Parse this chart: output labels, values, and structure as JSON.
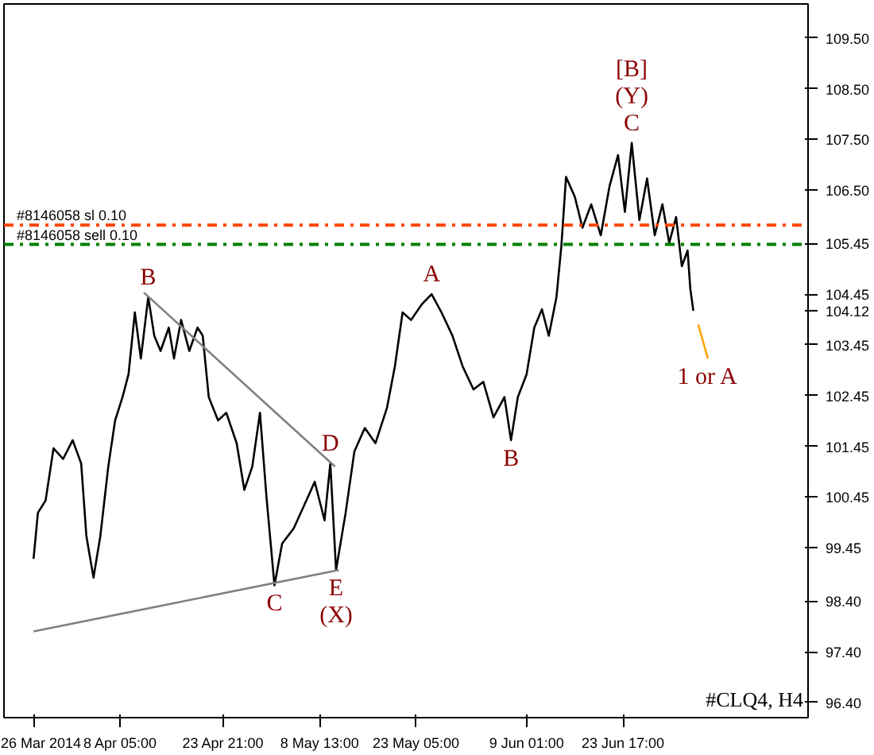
{
  "chart_data": {
    "type": "line",
    "xlim": [
      "2014-03-21T12:00",
      "2014-07-21T21:00"
    ],
    "ylim": [
      96.1,
      110.17
    ],
    "xticks": [
      {
        "value": "2014-03-26",
        "label": "26 Mar 2014"
      },
      {
        "value": "2014-04-08T05:00",
        "label": "8 Apr 05:00"
      },
      {
        "value": "2014-04-23T21:00",
        "label": "23 Apr 21:00"
      },
      {
        "value": "2014-05-08T13:00",
        "label": "8 May 13:00"
      },
      {
        "value": "2014-05-23T05:00",
        "label": "23 May 05:00"
      },
      {
        "value": "2014-06-09T01:00",
        "label": "9 Jun 01:00"
      },
      {
        "value": "2014-06-23T17:00",
        "label": "23 Jun 17:00"
      }
    ],
    "yticks": [
      {
        "value": 96.4,
        "label": "96.40"
      },
      {
        "value": 97.4,
        "label": "97.40"
      },
      {
        "value": 98.4,
        "label": "98.40"
      },
      99.45,
      100.45,
      101.45,
      102.45,
      103.45,
      104.12,
      104.45,
      105.45,
      {
        "value": 106.5,
        "label": "106.50"
      },
      {
        "value": 107.5,
        "label": "107.50"
      },
      {
        "value": 108.5,
        "label": "108.50"
      },
      {
        "value": 109.5,
        "label": "109.50"
      }
    ],
    "grid": false,
    "marker": "none",
    "line_style": "solid",
    "series": [
      {
        "color": "#000000",
        "x": [
          "2014-03-26T00:00",
          "2014-03-26T16:00",
          "2014-03-27T20:00",
          "2014-03-29T01:00",
          "2014-03-30T12:00",
          "2014-03-31T23:00",
          "2014-04-02T06:00",
          "2014-04-03T01:00",
          "2014-04-04T03:00",
          "2014-04-05T04:00",
          "2014-04-06T09:00",
          "2014-04-07T10:00",
          "2014-04-08T13:00",
          "2014-04-09T11:00",
          "2014-04-10T10:00",
          "2014-04-11T08:00",
          "2014-04-12T11:00",
          "2014-04-13T09:00",
          "2014-04-14T08:00",
          "2014-04-15T14:00",
          "2014-04-16T09:00",
          "2014-04-17T11:00",
          "2014-04-18T17:00",
          "2014-04-19T23:00",
          "2014-04-20T18:00",
          "2014-04-21T16:00",
          "2014-04-23T02:00",
          "2014-04-24T08:00",
          "2014-04-25T22:00",
          "2014-04-27T02:00",
          "2014-04-28T07:00",
          "2014-04-29T11:00",
          "2014-04-30T11:00",
          "2014-05-01T16:00",
          "2014-05-02T20:00",
          "2014-05-04T14:00",
          "2014-05-06T05:00",
          "2014-05-07T19:00",
          "2014-05-09T07:00",
          "2014-05-10T04:00",
          "2014-05-11T01:00",
          "2014-05-12T12:00",
          "2014-05-13T20:00",
          "2014-05-15T10:00",
          "2014-05-17T01:00",
          "2014-05-18T19:00",
          "2014-05-20T00:00",
          "2014-05-21T04:00",
          "2014-05-22T11:00",
          "2014-05-24T01:00",
          "2014-05-25T14:00",
          "2014-05-27T02:00",
          "2014-05-28T18:00",
          "2014-05-30T07:00",
          "2014-05-31T23:00",
          "2014-06-02T11:00",
          "2014-06-04T00:00",
          "2014-06-05T16:00",
          "2014-06-06T16:00",
          "2014-06-07T17:00",
          "2014-06-09T01:00",
          "2014-06-10T05:00",
          "2014-06-11T09:00",
          "2014-06-12T10:00",
          "2014-06-13T14:00",
          "2014-06-14T08:00",
          "2014-06-15T01:00",
          "2014-06-16T09:00",
          "2014-06-17T13:00",
          "2014-06-18T21:00",
          "2014-06-20T08:00",
          "2014-06-21T16:00",
          "2014-06-22T23:00",
          "2014-06-24T00:00",
          "2014-06-25T01:00",
          "2014-06-26T05:00",
          "2014-06-27T09:00",
          "2014-06-28T13:00",
          "2014-06-29T17:00",
          "2014-06-30T18:00",
          "2014-07-01T19:00",
          "2014-07-02T16:00",
          "2014-07-03T13:00",
          "2014-07-03T23:00",
          "2014-07-04T10:00"
        ],
        "values": [
          99.23,
          100.14,
          100.38,
          101.41,
          101.2,
          101.57,
          101.11,
          99.68,
          98.86,
          99.68,
          101.05,
          101.96,
          102.42,
          102.87,
          104.09,
          103.18,
          104.39,
          103.63,
          103.33,
          103.79,
          103.18,
          103.94,
          103.33,
          103.79,
          103.63,
          102.42,
          101.96,
          102.11,
          101.51,
          100.59,
          101.05,
          102.11,
          100.44,
          98.71,
          99.53,
          99.83,
          100.29,
          100.75,
          99.99,
          101.11,
          99.01,
          100.14,
          101.35,
          101.81,
          101.51,
          102.21,
          103.03,
          104.09,
          103.94,
          104.24,
          104.45,
          104.09,
          103.63,
          103.03,
          102.57,
          102.72,
          102.02,
          102.42,
          101.57,
          102.42,
          102.87,
          103.79,
          104.15,
          103.63,
          104.39,
          105.4,
          106.76,
          106.37,
          105.76,
          106.22,
          105.61,
          106.58,
          107.19,
          106.07,
          107.43,
          105.91,
          106.73,
          105.61,
          106.22,
          105.46,
          105.97,
          105.0,
          105.31,
          104.55,
          104.12
        ]
      },
      {
        "color": "#ffa500",
        "x": [
          "2014-07-05T04:00",
          "2014-07-06T15:00"
        ],
        "values": [
          103.85,
          103.18
        ]
      },
      {
        "color": "#808080",
        "x": [
          "2014-04-11T19:00",
          "2014-05-10T21:00"
        ],
        "values": [
          104.48,
          101.05
        ]
      },
      {
        "color": "#808080",
        "x": [
          "2014-03-26T00:00",
          "2014-05-11T11:00"
        ],
        "values": [
          97.8,
          99.01
        ]
      }
    ],
    "ref_lines": [
      {
        "axis": "y",
        "value": 105.81,
        "label": "#8146058 sl 0.10",
        "color": "#ff4500",
        "line_style": "dashed"
      },
      {
        "axis": "y",
        "value": 105.43,
        "label": "#8146058 sell 0.10",
        "color": "#008000",
        "line_style": "dashed"
      }
    ],
    "annotations": [
      {
        "text": "B",
        "x": "2014-04-12T11:00",
        "y": 104.39
      },
      {
        "text": "C",
        "x": "2014-05-01T16:00",
        "y": 98.71
      },
      {
        "text": "D",
        "x": "2014-05-10T04:00",
        "y": 101.11
      },
      {
        "text": "E",
        "x": "2014-05-11T01:00",
        "y": 99.01
      },
      {
        "text": "(X)",
        "x": "2014-05-11T01:00",
        "y": 99.01
      },
      {
        "text": "A",
        "x": "2014-05-25T14:00",
        "y": 104.45
      },
      {
        "text": "B",
        "x": "2014-06-06T16:00",
        "y": 101.57
      },
      {
        "text": "C",
        "x": "2014-06-25T01:00",
        "y": 107.43
      },
      {
        "text": "(Y)",
        "x": "2014-06-25T01:00",
        "y": 107.43
      },
      {
        "text": "[B]",
        "x": "2014-06-25T01:00",
        "y": 107.43
      },
      {
        "text": "1 or A",
        "x": "2014-07-06T15:00",
        "y": 103.18
      },
      "#CLQ4, H4"
    ]
  }
}
